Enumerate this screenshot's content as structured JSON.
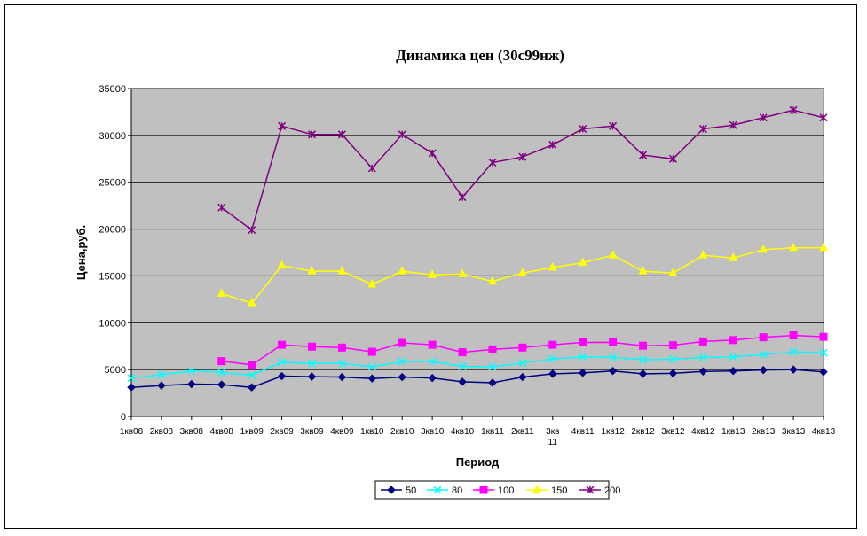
{
  "chart_data": {
    "type": "line",
    "title": "Динамика цен (30с99нж)",
    "xlabel": "Период",
    "ylabel": "Цена,руб.",
    "ylim": [
      0,
      35000
    ],
    "yticks": [
      "0",
      "5000",
      "10000",
      "15000",
      "20000",
      "25000",
      "30000",
      "35000"
    ],
    "categories": [
      "1кв08",
      "2кв08",
      "3кв08",
      "4кв08",
      "1кв09",
      "2кв09",
      "3кв09",
      "4кв09",
      "1кв10",
      "2кв10",
      "3кв10",
      "4кв10",
      "1кв11",
      "2кв11",
      "3кв 11",
      "4кв11",
      "1кв12",
      "2кв12",
      "3кв12",
      "4кв12",
      "1кв13",
      "2кв13",
      "3кв13",
      "4кв13"
    ],
    "grid": "horizontal",
    "plot_background": "#c0c0c0",
    "legend_position": "bottom",
    "series": [
      {
        "name": "50",
        "color": "#000080",
        "marker": "diamond",
        "values": [
          3100,
          3300,
          3450,
          3400,
          3100,
          4300,
          4250,
          4200,
          4050,
          4200,
          4100,
          3700,
          3600,
          4200,
          4550,
          4650,
          4850,
          4550,
          4600,
          4800,
          4850,
          4950,
          5000,
          4750
        ]
      },
      {
        "name": "80",
        "color": "#00ffff",
        "marker": "x",
        "values": [
          4100,
          4450,
          4850,
          4700,
          4400,
          5800,
          5650,
          5650,
          5300,
          5850,
          5850,
          5350,
          5300,
          5700,
          6150,
          6350,
          6300,
          6050,
          6100,
          6300,
          6350,
          6600,
          6900,
          6800
        ]
      },
      {
        "name": "100",
        "color": "#ff00ff",
        "marker": "square",
        "values": [
          null,
          null,
          null,
          5900,
          5500,
          7650,
          7450,
          7350,
          6900,
          7850,
          7650,
          6850,
          7150,
          7350,
          7650,
          7900,
          7900,
          7550,
          7600,
          8000,
          8150,
          8450,
          8650,
          8500
        ]
      },
      {
        "name": "150",
        "color": "#ffff00",
        "marker": "triangle",
        "values": [
          null,
          null,
          null,
          13100,
          12100,
          16100,
          15500,
          15500,
          14100,
          15500,
          15100,
          15200,
          14400,
          15300,
          15900,
          16400,
          17200,
          15500,
          15300,
          17200,
          16900,
          17800,
          18000,
          18000
        ]
      },
      {
        "name": "200",
        "color": "#800080",
        "marker": "star",
        "values": [
          null,
          null,
          null,
          22300,
          19900,
          31000,
          30100,
          30100,
          26500,
          30100,
          28100,
          23400,
          27100,
          27700,
          29000,
          30700,
          31000,
          27900,
          27500,
          30700,
          31100,
          31900,
          32700,
          31900
        ]
      }
    ]
  }
}
